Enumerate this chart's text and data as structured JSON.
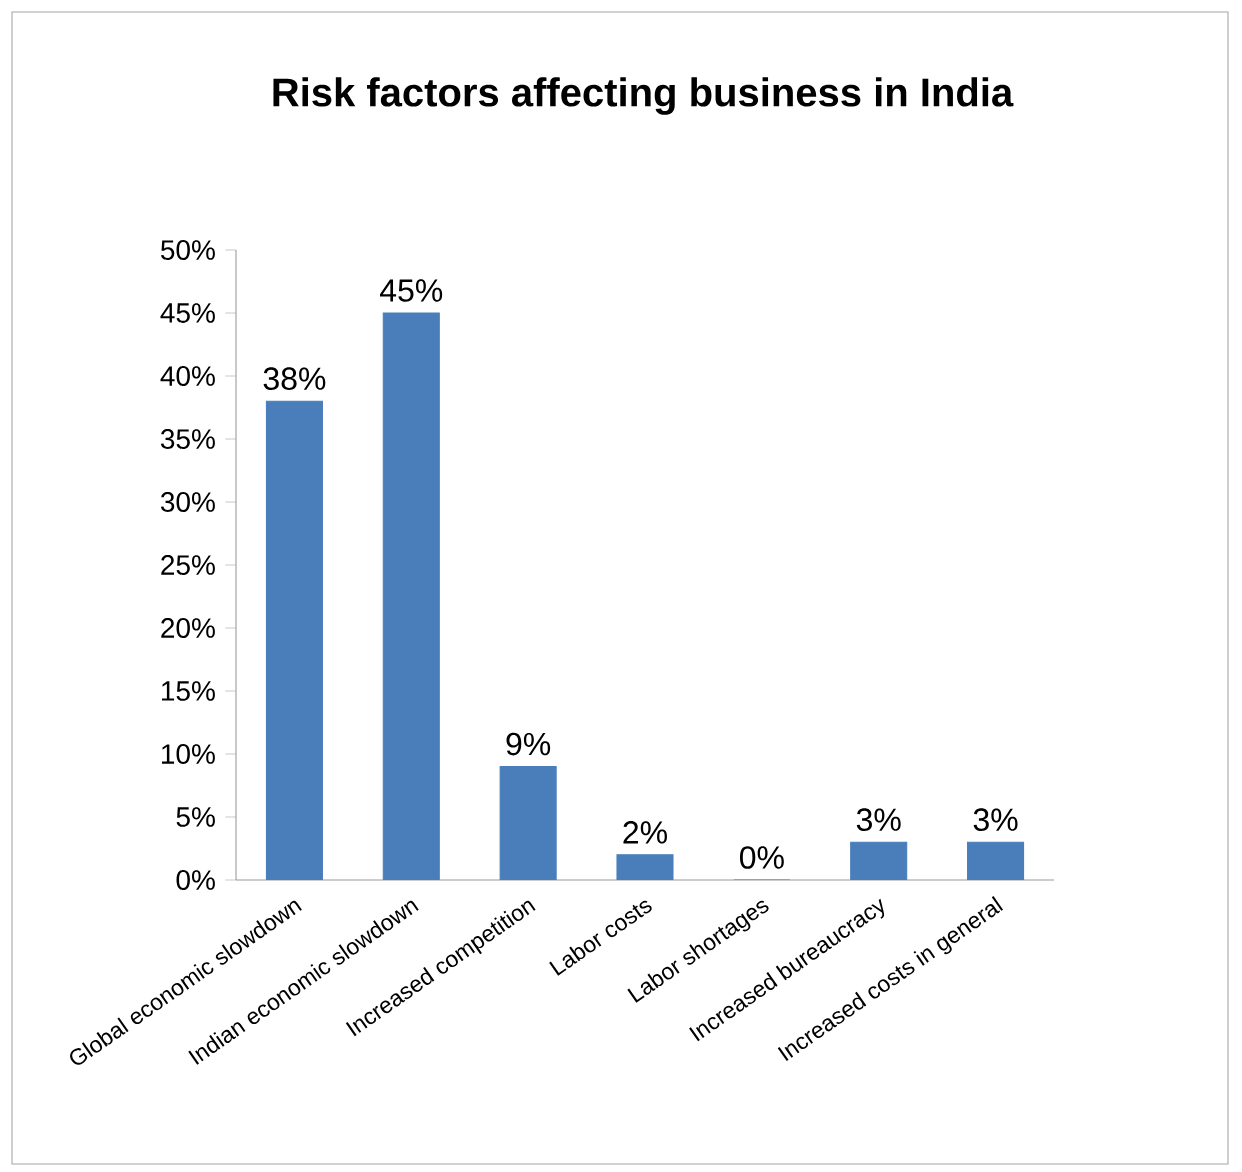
{
  "chart_data": {
    "type": "bar",
    "title": "Risk factors affecting business in India",
    "categories": [
      "Global economic slowdown",
      "Indian economic slowdown",
      "Increased competition",
      "Labor costs",
      "Labor shortages",
      "Increased bureaucracy",
      "Increased costs in general"
    ],
    "values": [
      38,
      45,
      9,
      2,
      0,
      3,
      3
    ],
    "value_labels": [
      "38%",
      "45%",
      "9%",
      "2%",
      "0%",
      "3%",
      "3%"
    ],
    "color": "#4a7ebb",
    "ylim": [
      0,
      50
    ],
    "yticks": [
      {
        "value": 0,
        "label": "0%"
      },
      {
        "value": 5,
        "label": "5%"
      },
      {
        "value": 10,
        "label": "10%"
      },
      {
        "value": 15,
        "label": "15%"
      },
      {
        "value": 20,
        "label": "20%"
      },
      {
        "value": 25,
        "label": "25%"
      },
      {
        "value": 30,
        "label": "30%"
      },
      {
        "value": 35,
        "label": "35%"
      },
      {
        "value": 40,
        "label": "40%"
      },
      {
        "value": 45,
        "label": "45%"
      },
      {
        "value": 50,
        "label": "50%"
      }
    ]
  }
}
